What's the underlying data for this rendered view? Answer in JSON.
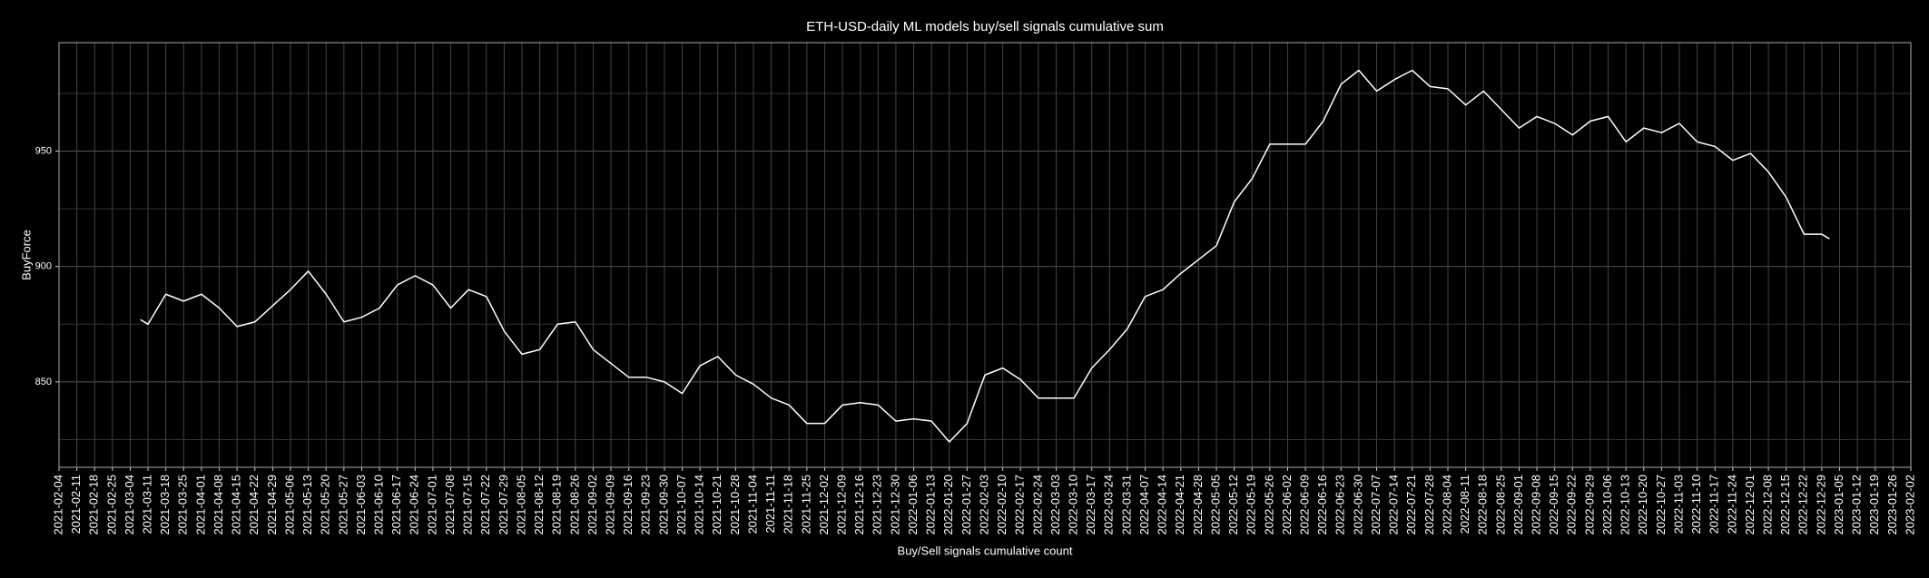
{
  "chart_data": {
    "type": "line",
    "title": "ETH-USD-daily ML models buy/sell signals cumulative sum",
    "xlabel": "Buy/Sell signals cumulative count",
    "ylabel": "BuyForce",
    "color": "#ffffff",
    "background": "#000000",
    "grid": true,
    "xlim": [
      "2021-02-04",
      "2023-02-02"
    ],
    "ylim": [
      813,
      997
    ],
    "yticks": [
      850,
      900,
      950
    ],
    "y_minor_grid": [
      825,
      875,
      925,
      975
    ],
    "xticks": [
      "2021-02-04",
      "2021-02-11",
      "2021-02-18",
      "2021-02-25",
      "2021-03-04",
      "2021-03-11",
      "2021-03-18",
      "2021-03-25",
      "2021-04-01",
      "2021-04-08",
      "2021-04-15",
      "2021-04-22",
      "2021-04-29",
      "2021-05-06",
      "2021-05-13",
      "2021-05-20",
      "2021-05-27",
      "2021-06-03",
      "2021-06-10",
      "2021-06-17",
      "2021-06-24",
      "2021-07-01",
      "2021-07-08",
      "2021-07-15",
      "2021-07-22",
      "2021-07-29",
      "2021-08-05",
      "2021-08-12",
      "2021-08-19",
      "2021-08-26",
      "2021-09-02",
      "2021-09-09",
      "2021-09-16",
      "2021-09-23",
      "2021-09-30",
      "2021-10-07",
      "2021-10-14",
      "2021-10-21",
      "2021-10-28",
      "2021-11-04",
      "2021-11-11",
      "2021-11-18",
      "2021-11-25",
      "2021-12-02",
      "2021-12-09",
      "2021-12-16",
      "2021-12-23",
      "2021-12-30",
      "2022-01-06",
      "2022-01-13",
      "2022-01-20",
      "2022-01-27",
      "2022-02-03",
      "2022-02-10",
      "2022-02-17",
      "2022-02-24",
      "2022-03-03",
      "2022-03-10",
      "2022-03-17",
      "2022-03-24",
      "2022-03-31",
      "2022-04-07",
      "2022-04-14",
      "2022-04-21",
      "2022-04-28",
      "2022-05-05",
      "2022-05-12",
      "2022-05-19",
      "2022-05-26",
      "2022-06-02",
      "2022-06-09",
      "2022-06-16",
      "2022-06-23",
      "2022-06-30",
      "2022-07-07",
      "2022-07-14",
      "2022-07-21",
      "2022-07-28",
      "2022-08-04",
      "2022-08-11",
      "2022-08-18",
      "2022-08-25",
      "2022-09-01",
      "2022-09-08",
      "2022-09-15",
      "2022-09-22",
      "2022-09-29",
      "2022-10-06",
      "2022-10-13",
      "2022-10-20",
      "2022-10-27",
      "2022-11-03",
      "2022-11-10",
      "2022-11-17",
      "2022-11-24",
      "2022-12-01",
      "2022-12-08",
      "2022-12-15",
      "2022-12-22",
      "2022-12-29",
      "2023-01-05",
      "2023-01-12",
      "2023-01-19",
      "2023-01-26",
      "2023-02-02"
    ],
    "x": [
      "2021-03-08",
      "2021-03-11",
      "2021-03-18",
      "2021-03-25",
      "2021-04-01",
      "2021-04-08",
      "2021-04-15",
      "2021-04-22",
      "2021-04-29",
      "2021-05-06",
      "2021-05-13",
      "2021-05-20",
      "2021-05-27",
      "2021-06-03",
      "2021-06-10",
      "2021-06-17",
      "2021-06-24",
      "2021-07-01",
      "2021-07-08",
      "2021-07-15",
      "2021-07-22",
      "2021-07-29",
      "2021-08-05",
      "2021-08-12",
      "2021-08-19",
      "2021-08-26",
      "2021-09-02",
      "2021-09-09",
      "2021-09-16",
      "2021-09-23",
      "2021-09-30",
      "2021-10-07",
      "2021-10-14",
      "2021-10-21",
      "2021-10-28",
      "2021-11-04",
      "2021-11-11",
      "2021-11-18",
      "2021-11-25",
      "2021-12-02",
      "2021-12-09",
      "2021-12-16",
      "2021-12-23",
      "2021-12-30",
      "2022-01-06",
      "2022-01-13",
      "2022-01-20",
      "2022-01-27",
      "2022-02-03",
      "2022-02-10",
      "2022-02-17",
      "2022-02-24",
      "2022-03-03",
      "2022-03-10",
      "2022-03-17",
      "2022-03-24",
      "2022-03-31",
      "2022-04-07",
      "2022-04-14",
      "2022-04-21",
      "2022-04-28",
      "2022-05-05",
      "2022-05-12",
      "2022-05-19",
      "2022-05-26",
      "2022-06-02",
      "2022-06-09",
      "2022-06-16",
      "2022-06-23",
      "2022-06-30",
      "2022-07-07",
      "2022-07-14",
      "2022-07-21",
      "2022-07-28",
      "2022-08-04",
      "2022-08-11",
      "2022-08-18",
      "2022-08-25",
      "2022-09-01",
      "2022-09-08",
      "2022-09-15",
      "2022-09-22",
      "2022-09-29",
      "2022-10-06",
      "2022-10-13",
      "2022-10-20",
      "2022-10-27",
      "2022-11-03",
      "2022-11-10",
      "2022-11-17",
      "2022-11-24",
      "2022-12-01",
      "2022-12-08",
      "2022-12-15",
      "2022-12-22",
      "2022-12-29",
      "2023-01-01"
    ],
    "values": [
      877,
      875,
      888,
      885,
      888,
      882,
      874,
      876,
      883,
      890,
      898,
      888,
      876,
      878,
      882,
      892,
      896,
      892,
      882,
      890,
      887,
      872,
      862,
      864,
      875,
      876,
      864,
      858,
      852,
      852,
      850,
      845,
      857,
      861,
      853,
      849,
      843,
      840,
      832,
      832,
      840,
      841,
      840,
      833,
      834,
      833,
      824,
      832,
      853,
      856,
      851,
      843,
      843,
      843,
      856,
      864,
      873,
      887,
      890,
      897,
      903,
      909,
      928,
      938,
      953,
      953,
      953,
      963,
      979,
      985,
      976,
      981,
      985,
      978,
      977,
      970,
      976,
      968,
      960,
      965,
      962,
      957,
      963,
      965,
      954,
      960,
      958,
      962,
      954,
      952,
      946,
      949,
      941,
      930,
      914,
      914,
      912
    ]
  }
}
